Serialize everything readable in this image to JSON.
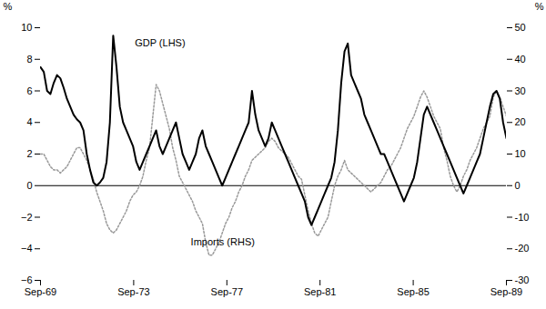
{
  "chart_data": {
    "type": "line",
    "ylabel": "%",
    "y2label": "%",
    "x": [
      1969.75,
      1969.8918,
      1970.0337,
      1970.1755,
      1970.3174,
      1970.4592,
      1970.6011,
      1970.7429,
      1970.8848,
      1971.0266,
      1971.1684,
      1971.3103,
      1971.4521,
      1971.594,
      1971.7358,
      1971.8777,
      1972.0195,
      1972.1613,
      1972.3032,
      1972.445,
      1972.5869,
      1972.7287,
      1972.8706,
      1973.0124,
      1973.1543,
      1973.2961,
      1973.4379,
      1973.5798,
      1973.7216,
      1973.8635,
      1974.0053,
      1974.1472,
      1974.289,
      1974.4309,
      1974.5727,
      1974.7145,
      1974.8564,
      1974.9982,
      1975.1401,
      1975.2819,
      1975.4238,
      1975.5656,
      1975.7074,
      1975.8493,
      1975.9911,
      1976.133,
      1976.2748,
      1976.4167,
      1976.5585,
      1976.7004,
      1976.8422,
      1976.984,
      1977.1259,
      1977.2677,
      1977.4096,
      1977.5514,
      1977.6933,
      1977.8351,
      1977.977,
      1978.1188,
      1978.2606,
      1978.4025,
      1978.5443,
      1978.6862,
      1978.828,
      1978.9699,
      1979.1117,
      1979.2535,
      1979.3954,
      1979.5372,
      1979.6791,
      1979.8209,
      1979.9628,
      1980.1046,
      1980.2465,
      1980.3883,
      1980.5301,
      1980.672,
      1980.8138,
      1980.9557,
      1981.0975,
      1981.2394,
      1981.3812,
      1981.523,
      1981.6649,
      1981.8067,
      1981.9486,
      1982.0904,
      1982.2323,
      1982.3741,
      1982.516,
      1982.6578,
      1982.7996,
      1982.9415,
      1983.0833,
      1983.2252,
      1983.367,
      1983.5089,
      1983.6507,
      1983.7926,
      1983.9344,
      1984.0762,
      1984.2181,
      1984.3599,
      1984.5018,
      1984.6436,
      1984.7855,
      1984.9273,
      1985.0691,
      1985.211,
      1985.3528,
      1985.4947,
      1985.6365,
      1985.7784,
      1985.9202,
      1986.0621,
      1986.2039,
      1986.3457,
      1986.4876,
      1986.6294,
      1986.7713,
      1986.9131,
      1987.055,
      1987.1968,
      1987.3387,
      1987.4805,
      1987.6223,
      1987.7642,
      1987.906,
      1988.0479,
      1988.1897,
      1988.3316,
      1988.4734,
      1988.6152,
      1988.7571,
      1988.8989,
      1989.0408,
      1989.1826,
      1989.3245,
      1989.4663,
      1989.6082,
      1989.75
    ],
    "xlim": [
      1969.75,
      1989.75
    ],
    "xticks": [
      {
        "value": 1969.75,
        "label": "Sep-69"
      },
      {
        "value": 1973.75,
        "label": "Sep-73"
      },
      {
        "value": 1977.75,
        "label": "Sep-77"
      },
      {
        "value": 1981.75,
        "label": "Sep-81"
      },
      {
        "value": 1985.75,
        "label": "Sep-85"
      },
      {
        "value": 1989.75,
        "label": "Sep-89"
      }
    ],
    "ylim": [
      -6,
      10
    ],
    "yticks": [
      -6,
      -4,
      -2,
      0,
      2,
      4,
      6,
      8,
      10
    ],
    "y2lim": [
      -30,
      50
    ],
    "y2ticks": [
      -30,
      -20,
      -10,
      0,
      10,
      20,
      30,
      40,
      50
    ],
    "grid": false,
    "series": [
      {
        "color": "#000000",
        "line_style": "solid",
        "values": [
          7.5,
          7.2,
          6.0,
          5.8,
          6.5,
          7.0,
          6.8,
          6.2,
          5.5,
          5.0,
          4.5,
          4.2,
          4.0,
          3.5,
          2.0,
          1.0,
          0.2,
          0.0,
          0.2,
          0.5,
          1.5,
          4.0,
          9.5,
          7.5,
          5.0,
          4.0,
          3.5,
          3.0,
          2.5,
          1.5,
          1.0,
          1.5,
          2.0,
          2.5,
          3.0,
          3.5,
          2.5,
          2.0,
          2.5,
          3.0,
          3.5,
          4.0,
          3.0,
          2.0,
          1.5,
          1.0,
          1.5,
          2.0,
          3.0,
          3.5,
          2.5,
          2.0,
          1.5,
          1.0,
          0.5,
          0.0,
          0.5,
          1.0,
          1.5,
          2.0,
          2.5,
          3.0,
          3.5,
          4.0,
          6.0,
          4.5,
          3.5,
          3.0,
          2.5,
          3.0,
          4.0,
          3.5,
          3.0,
          2.5,
          2.0,
          1.5,
          1.0,
          0.5,
          0.0,
          -0.5,
          -1.0,
          -2.0,
          -2.5,
          -2.0,
          -1.5,
          -1.0,
          -0.5,
          0.0,
          0.5,
          1.5,
          3.5,
          6.5,
          8.5,
          9.0,
          7.0,
          6.5,
          6.0,
          5.5,
          4.5,
          4.0,
          3.5,
          3.0,
          2.5,
          2.0,
          2.0,
          1.5,
          1.0,
          0.5,
          0.0,
          -0.5,
          -1.0,
          -0.5,
          0.0,
          0.5,
          1.5,
          3.0,
          4.5,
          5.0,
          4.5,
          4.0,
          3.5,
          3.0,
          2.5,
          2.0,
          1.5,
          1.0,
          0.5,
          0.0,
          -0.5,
          0.0,
          0.5,
          1.0,
          1.5,
          2.0,
          3.0,
          4.0,
          5.0,
          5.8,
          6.0,
          5.5,
          4.0,
          3.0
        ]
      },
      {
        "color": "#999999",
        "line_style": "dotted",
        "axis": "y2",
        "values": [
          10,
          10,
          8,
          6,
          5,
          5,
          4,
          5,
          6,
          8,
          10,
          12,
          12,
          10,
          8,
          5,
          2,
          -2,
          -5,
          -8,
          -12,
          -14,
          -15,
          -14,
          -12,
          -10,
          -8,
          -5,
          -3,
          -2,
          0,
          3,
          8,
          12,
          22,
          32,
          30,
          26,
          22,
          18,
          12,
          8,
          3,
          1,
          -1,
          -3,
          -5,
          -8,
          -10,
          -12,
          -18,
          -22,
          -22,
          -20,
          -18,
          -15,
          -12,
          -10,
          -7,
          -5,
          -2,
          0,
          3,
          5,
          8,
          9,
          10,
          11,
          12,
          14,
          15,
          14,
          12,
          11,
          10,
          9,
          7,
          5,
          3,
          2,
          -3,
          -8,
          -12,
          -15,
          -16,
          -14,
          -12,
          -10,
          -5,
          0,
          3,
          5,
          8,
          5,
          4,
          3,
          2,
          1,
          0,
          -1,
          -2,
          -1,
          0,
          1,
          3,
          5,
          6,
          8,
          10,
          12,
          15,
          18,
          20,
          22,
          25,
          28,
          30,
          28,
          25,
          22,
          20,
          18,
          12,
          8,
          3,
          0,
          -2,
          0,
          3,
          5,
          8,
          10,
          12,
          15,
          18,
          20,
          22,
          28,
          30,
          28,
          25,
          22
        ]
      }
    ],
    "annotations": [
      {
        "text": "GDP (LHS)",
        "x": 1973.8,
        "y": 8.8
      },
      {
        "text": "Imports (RHS)",
        "x": 1976.2,
        "y": -3.8
      }
    ]
  }
}
